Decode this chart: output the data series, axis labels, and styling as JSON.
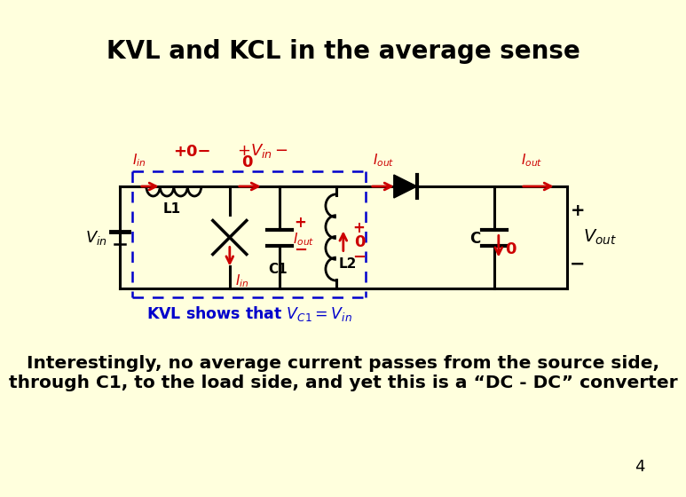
{
  "bg_color": "#FFFFDD",
  "title": "KVL and KCL in the average sense",
  "title_fontsize": 20,
  "red": "#CC0000",
  "blue": "#0000CC",
  "black": "#000000",
  "body_line1": "Interestingly, no average current passes from the source side,",
  "body_line2": "through C1, to the load side, and yet this is a “DC - DC” converter",
  "body_fontsize": 14.5,
  "page_num": "4"
}
